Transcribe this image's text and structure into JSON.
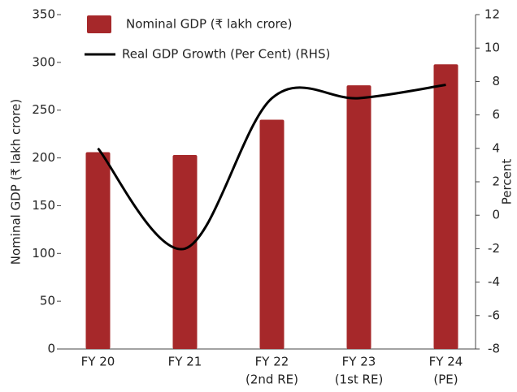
{
  "chart_data": {
    "type": "bar_line",
    "categories": [
      [
        "FY 20"
      ],
      [
        "FY 21"
      ],
      [
        "FY 22",
        "(2nd RE)"
      ],
      [
        "FY 23",
        "(1st RE)"
      ],
      [
        "FY 24",
        "(PE)"
      ]
    ],
    "series": [
      {
        "name": "Nominal GDP (₹ lakh crore)",
        "type": "bar",
        "color": "#a6282a",
        "values": [
          206,
          203,
          240,
          276,
          298
        ]
      },
      {
        "name": "Real GDP Growth (Per Cent) (RHS)",
        "type": "line",
        "axis": "y2",
        "color": "#000000",
        "values": [
          4.0,
          -2.0,
          7.0,
          7.0,
          7.8
        ]
      }
    ],
    "ylabel": "Nominal GDP (₹ lakh crore)",
    "y2label": "Percent",
    "ylim": [
      0,
      350
    ],
    "yticks": [
      0,
      50,
      100,
      150,
      200,
      250,
      300,
      350
    ],
    "y2lim": [
      -8,
      12
    ],
    "y2ticks": [
      -8,
      -6,
      -4,
      -2,
      0,
      2,
      4,
      6,
      8,
      10,
      12
    ],
    "legend": "upper left"
  }
}
